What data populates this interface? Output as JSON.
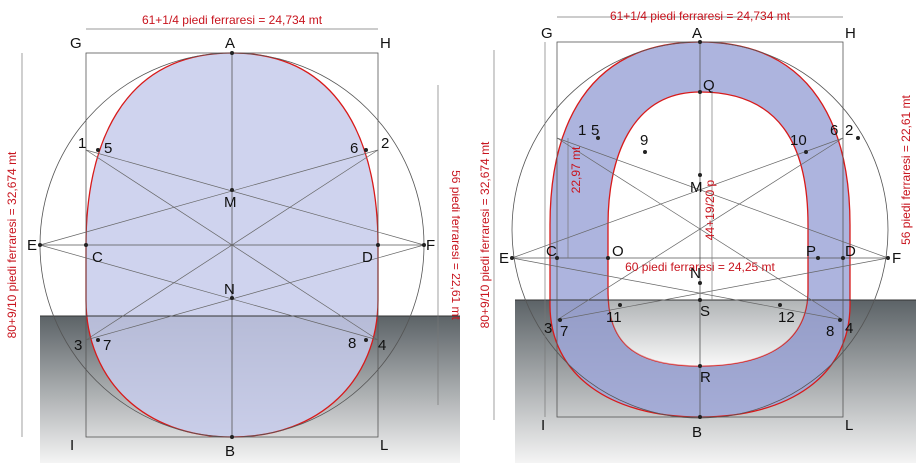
{
  "colors": {
    "fill": "#c7cbeb",
    "fill_dark": "#9aa2d4",
    "outline": "#d81a1a",
    "ground_top": "#5c6367",
    "ground_bottom": "#f2f2f2",
    "dim_text": "#c8141e"
  },
  "left": {
    "top_dimension": "61+1/4 piedi ferraresi = 24,734 mt",
    "left_dimension": "80+9/10 piedi ferraresi = 32,674 mt",
    "right_dimension": "56 piedi ferraresi = 22,61 mt",
    "points": {
      "G": "G",
      "A": "A",
      "H": "H",
      "1": "1",
      "5": "5",
      "6": "6",
      "2": "2",
      "M": "M",
      "E": "E",
      "C": "C",
      "D": "D",
      "F": "F",
      "N": "N",
      "3": "3",
      "7": "7",
      "8": "8",
      "4": "4",
      "I": "I",
      "B": "B",
      "L": "L"
    }
  },
  "right": {
    "top_dimension": "61+1/4 piedi ferraresi = 24,734 mt",
    "left_dimension": "80+9/10 piedi ferraresi = 32,674 mt",
    "right_dimension": "56 piedi ferraresi = 22,61 mt",
    "inner_left_dimension": "22,97 mt",
    "vertical_dimension": "44+19/20 p",
    "horizontal_dimension": "60 piedi ferraresi = 24,25 mt",
    "points": {
      "G": "G",
      "A": "A",
      "H": "H",
      "Q": "Q",
      "1": "1",
      "5": "5",
      "9": "9",
      "10": "10",
      "6": "6",
      "2": "2",
      "M": "M",
      "E": "E",
      "C": "C",
      "O": "O",
      "P": "P",
      "D": "D",
      "F": "F",
      "N": "N",
      "11": "11",
      "S": "S",
      "12": "12",
      "3": "3",
      "7": "7",
      "8": "8",
      "4": "4",
      "R": "R",
      "I": "I",
      "B": "B",
      "L": "L"
    }
  }
}
